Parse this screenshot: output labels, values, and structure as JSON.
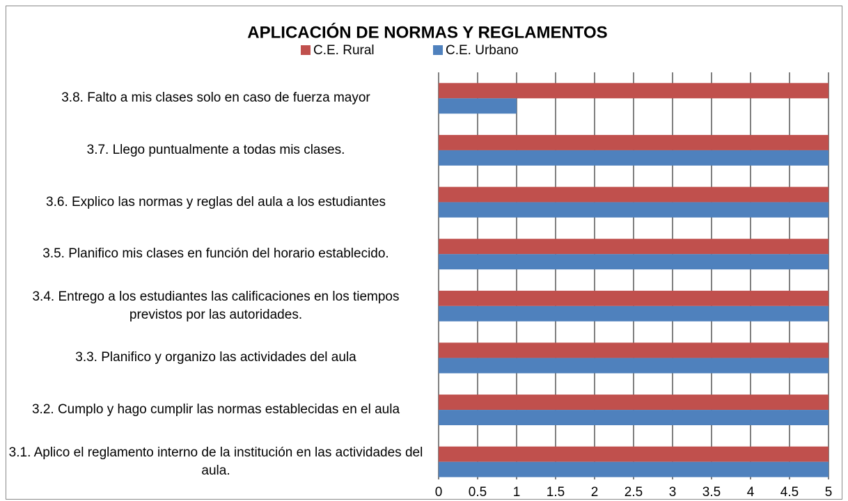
{
  "chart_data": {
    "type": "bar",
    "orientation": "horizontal",
    "title": "APLICACIÓN  DE NORMAS Y REGLAMENTOS",
    "categories": [
      "3.1.   Aplico el reglamento interno de la institución en las actividades del aula.",
      "3.2. Cumplo y hago cumplir las normas establecidas en el aula",
      "3.3. Planifico y organizo las actividades del aula",
      "3.4. Entrego a los estudiantes las calificaciones en los tiempos previstos por las autoridades.",
      "3.5. Planifico mis clases en función del horario establecido.",
      "3.6. Explico las normas y reglas del aula a los estudiantes",
      "3.7. Llego puntualmente a todas mis clases.",
      "3.8. Falto a mis clases solo en caso de fuerza mayor"
    ],
    "series": [
      {
        "name": "C.E. Rural",
        "color": "#c0504d",
        "values": [
          5,
          5,
          5,
          5,
          5,
          5,
          5,
          5
        ]
      },
      {
        "name": "C.E. Urbano",
        "color": "#4f81bd",
        "values": [
          5,
          5,
          5,
          5,
          5,
          5,
          5,
          1
        ]
      }
    ],
    "xlim": [
      0,
      5
    ],
    "xticks": [
      0,
      0.5,
      1,
      1.5,
      2,
      2.5,
      3,
      3.5,
      4,
      4.5,
      5
    ],
    "grid": true,
    "legend": "top"
  }
}
